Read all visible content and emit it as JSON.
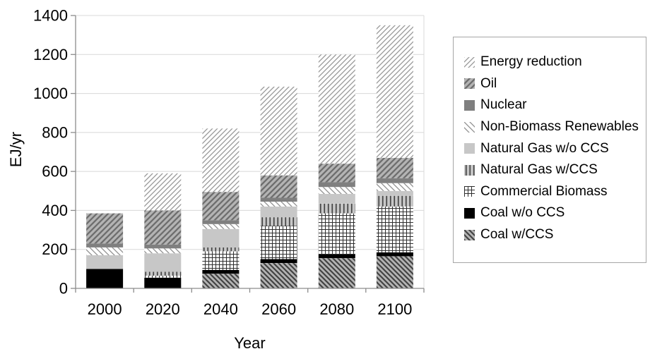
{
  "chart_data": {
    "type": "bar",
    "stacked": true,
    "title": "",
    "xlabel": "Year",
    "ylabel": "EJ/yr",
    "unit": "EJ/yr",
    "ylim": [
      0,
      1400
    ],
    "yticks": [
      0,
      200,
      400,
      600,
      800,
      1000,
      1200,
      1400
    ],
    "grid": true,
    "legend_position": "right-box",
    "categories": [
      "2000",
      "2020",
      "2040",
      "2060",
      "2080",
      "2100"
    ],
    "series": [
      {
        "name": "Coal w/CCS",
        "pattern": "backslash-on-gray",
        "values": [
          0,
          0,
          75,
          130,
          155,
          165
        ]
      },
      {
        "name": "Coal w/o CCS",
        "pattern": "solid-black",
        "values": [
          100,
          55,
          20,
          20,
          20,
          20
        ]
      },
      {
        "name": "Commercial Biomass",
        "pattern": "crosshatch-on-white",
        "values": [
          0,
          10,
          95,
          170,
          210,
          235
        ]
      },
      {
        "name": "Natural Gas w/CCS",
        "pattern": "vertical-lines-on-gray",
        "values": [
          0,
          20,
          20,
          45,
          50,
          55
        ]
      },
      {
        "name": "Natural Gas w/o CCS",
        "pattern": "solid-light-gray",
        "values": [
          70,
          95,
          95,
          55,
          50,
          25
        ]
      },
      {
        "name": "Non-Biomass Renewables",
        "pattern": "backslash-thin-on-white",
        "values": [
          40,
          25,
          25,
          25,
          35,
          40
        ]
      },
      {
        "name": "Nuclear",
        "pattern": "solid-dark-gray",
        "values": [
          20,
          20,
          20,
          20,
          25,
          25
        ]
      },
      {
        "name": "Oil",
        "pattern": "slash-on-gray",
        "values": [
          155,
          175,
          145,
          115,
          95,
          105
        ]
      },
      {
        "name": "Energy reduction",
        "pattern": "slash-thin-on-white",
        "values": [
          0,
          190,
          325,
          455,
          560,
          680
        ]
      }
    ],
    "stack_totals": [
      385,
      590,
      820,
      1035,
      1200,
      1350
    ],
    "legend_order_top_to_bottom": [
      "Energy reduction",
      "Oil",
      "Nuclear",
      "Non-Biomass Renewables",
      "Natural Gas w/o CCS",
      "Natural Gas w/CCS",
      "Commercial Biomass",
      "Coal w/o CCS",
      "Coal w/CCS"
    ]
  },
  "colors": {
    "grid": "#d8d8d8",
    "axis": "#8c8c8c",
    "text": "#000000",
    "legend_border": "#a6a6a6",
    "solid_black": "#000000",
    "dark_gray": "#7f7f7f",
    "light_gray": "#c7c7c7",
    "medium_gray": "#b4b4b4",
    "hatch_dark": "#434343",
    "hatch_mid": "#6e6e6e",
    "hatch_light": "#969696"
  }
}
